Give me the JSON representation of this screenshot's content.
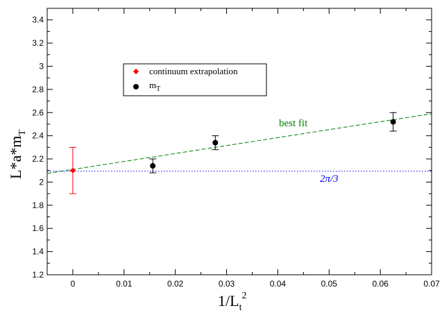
{
  "chart_data": {
    "type": "scatter",
    "xlabel": "1/L_t^2",
    "ylabel": "L*a*m_T",
    "xlim": [
      -0.005,
      0.07
    ],
    "ylim": [
      1.2,
      3.5
    ],
    "x_ticks": [
      "0",
      "0.01",
      "0.02",
      "0.03",
      "0.04",
      "0.05",
      "0.06",
      "0.07"
    ],
    "y_ticks": [
      "1.2",
      "1.4",
      "1.6",
      "1.8",
      "2",
      "2.2",
      "2.4",
      "2.6",
      "2.8",
      "3",
      "3.2",
      "3.4"
    ],
    "grid": false,
    "legend_position": "upper-left-center",
    "series": [
      {
        "name": "continuum extrapolation",
        "color": "#ff0000",
        "marker": "diamond",
        "points": [
          {
            "x": 0,
            "y": 2.1,
            "yerr": 0.2
          }
        ]
      },
      {
        "name": "m_T",
        "color": "#000000",
        "marker": "circle",
        "points": [
          {
            "x": 0.0156,
            "y": 2.14,
            "yerr": 0.06
          },
          {
            "x": 0.0278,
            "y": 2.34,
            "yerr": 0.06
          },
          {
            "x": 0.0625,
            "y": 2.52,
            "yerr": 0.08
          }
        ]
      }
    ],
    "lines": [
      {
        "label": "best fit",
        "style": "dashed",
        "color": "#008000",
        "x": [
          -0.005,
          0.07
        ],
        "y": [
          2.075,
          2.59
        ]
      },
      {
        "label": "2π/3",
        "style": "dotted",
        "color": "#0000ff",
        "x": [
          -0.005,
          0.07
        ],
        "y": [
          2.094,
          2.094
        ]
      }
    ],
    "legend": {
      "entries": [
        {
          "label_main": "continuum extrapolation",
          "label_sub": "",
          "color": "#ff0000",
          "marker": "diamond"
        },
        {
          "label_main": "m",
          "label_sub": "T",
          "color": "#000000",
          "marker": "circle"
        }
      ]
    },
    "axis_titles": {
      "x_main": "1/L",
      "x_sub": "t",
      "x_sup": "2",
      "y_main": "L*a*m",
      "y_sub": "T"
    },
    "annotations": [
      {
        "text": "best fit",
        "color": "#008000"
      },
      {
        "text": "2π/3",
        "color": "#0000ff"
      }
    ]
  }
}
